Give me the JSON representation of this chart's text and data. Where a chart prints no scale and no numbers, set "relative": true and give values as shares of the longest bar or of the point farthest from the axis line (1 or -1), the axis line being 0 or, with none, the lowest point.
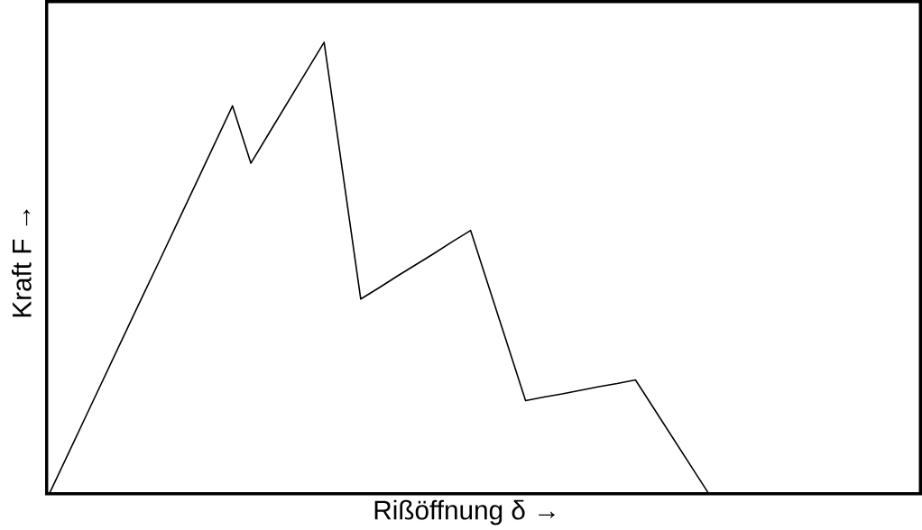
{
  "chart_data": {
    "type": "line",
    "relative": true,
    "xlabel": "Rißöffnung δ →",
    "ylabel": "Kraft F →",
    "color": "#000000",
    "marker": "none",
    "categories": [
      null,
      null,
      null,
      null,
      null,
      null,
      null,
      null,
      null,
      null,
      null,
      null,
      null,
      null,
      null,
      null,
      null,
      null,
      null,
      null,
      null,
      null,
      null,
      null,
      null,
      null,
      null,
      null,
      null,
      null,
      null,
      null,
      null,
      null,
      null,
      null,
      null
    ],
    "values": [
      0,
      0.086,
      0.172,
      0.258,
      0.344,
      0.43,
      0.515,
      0.601,
      0.687,
      0.773,
      0.859,
      0.732,
      0.799,
      0.866,
      0.933,
      1,
      0.716,
      0.431,
      0.456,
      0.482,
      0.507,
      0.532,
      0.558,
      0.583,
      0.457,
      0.332,
      0.206,
      0.214,
      0.221,
      0.229,
      0.237,
      0.244,
      0.252,
      0.189,
      0.126,
      0.063,
      0
    ]
  }
}
